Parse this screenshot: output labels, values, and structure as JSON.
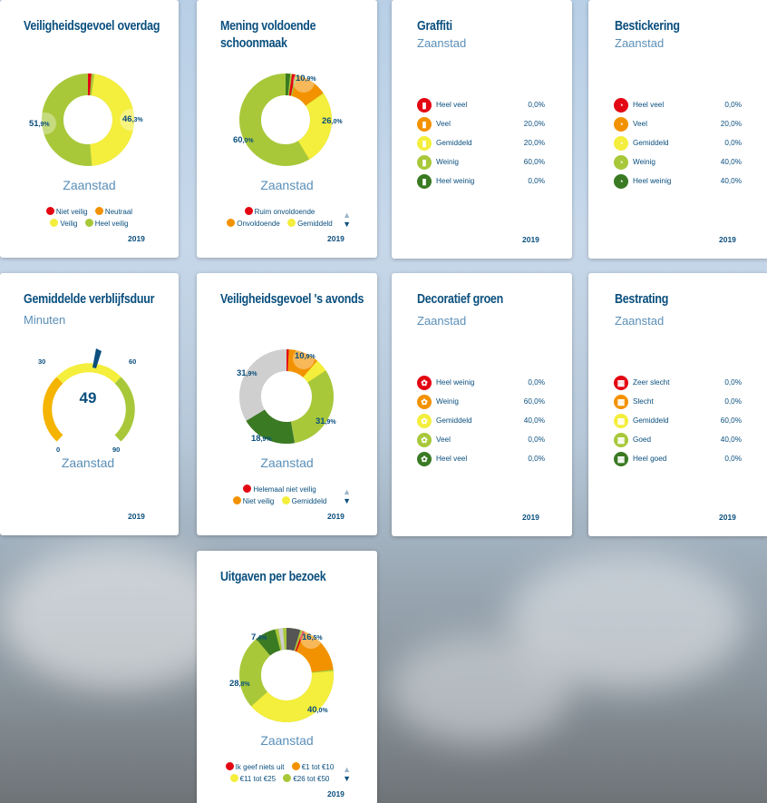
{
  "cards": {
    "c1": {
      "title": "Veiligheidsgevoel overdag",
      "region": "Zaanstad",
      "year": "2019",
      "labels": {
        "a": "51",
        "b": ",9%",
        "c": "46",
        "d": ",3%"
      },
      "legend": [
        "Niet veilig",
        "Neutraal",
        "Veilig",
        "Heel veilig"
      ]
    },
    "c2": {
      "title": "Mening voldoende schoonmaak",
      "region": "Zaanstad",
      "year": "2019",
      "labels": {
        "a": "10",
        "b": ",9%",
        "c": "26",
        "d": ",0%",
        "e": "60",
        "f": ",0%"
      },
      "legend": [
        "Ruim onvoldoende",
        "Onvoldoende",
        "Gemiddeld"
      ]
    },
    "c3": {
      "title": "Graffiti",
      "subtitle": "Zaanstad",
      "year": "2019",
      "rows": [
        {
          "label": "Heel veel",
          "value": "0,0%"
        },
        {
          "label": "Veel",
          "value": "20,0%"
        },
        {
          "label": "Gemiddeld",
          "value": "20,0%"
        },
        {
          "label": "Weinig",
          "value": "60,0%"
        },
        {
          "label": "Heel weinig",
          "value": "0,0%"
        }
      ]
    },
    "c4": {
      "title": "Bestickering",
      "subtitle": "Zaanstad",
      "year": "2019",
      "rows": [
        {
          "label": "Heel veel",
          "value": "0,0%"
        },
        {
          "label": "Veel",
          "value": "20,0%"
        },
        {
          "label": "Gemiddeld",
          "value": "0,0%"
        },
        {
          "label": "Weinig",
          "value": "40,0%"
        },
        {
          "label": "Heel weinig",
          "value": "40,0%"
        }
      ]
    },
    "c5": {
      "title": "Gemiddelde verblijfsduur",
      "subtitle": "Minuten",
      "region": "Zaanstad",
      "year": "2019",
      "gauge": {
        "value": "49",
        "t30": "30",
        "t60": "60",
        "t0": "0",
        "t90": "90"
      }
    },
    "c6": {
      "title": "Veiligheidsgevoel 's avonds",
      "region": "Zaanstad",
      "year": "2019",
      "labels": {
        "a": "10",
        "b": ",9%",
        "c": "31",
        "d": ",9%",
        "e": "18",
        "f": ",9%",
        "g": "31",
        "h": ",9%"
      },
      "legend": [
        "Helemaal niet veilig",
        "Niet veilig",
        "Gemiddeld"
      ]
    },
    "c7": {
      "title": "Decoratief groen",
      "subtitle": "Zaanstad",
      "year": "2019",
      "rows": [
        {
          "label": "Heel weinig",
          "value": "0,0%"
        },
        {
          "label": "Weinig",
          "value": "60,0%"
        },
        {
          "label": "Gemiddeld",
          "value": "40,0%"
        },
        {
          "label": "Veel",
          "value": "0,0%"
        },
        {
          "label": "Heel veel",
          "value": "0,0%"
        }
      ]
    },
    "c8": {
      "title": "Bestrating",
      "subtitle": "Zaanstad",
      "year": "2019",
      "rows": [
        {
          "label": "Zeer slecht",
          "value": "0,0%"
        },
        {
          "label": "Slecht",
          "value": "0,0%"
        },
        {
          "label": "Gemiddeld",
          "value": "60,0%"
        },
        {
          "label": "Goed",
          "value": "40,0%"
        },
        {
          "label": "Heel goed",
          "value": "0,0%"
        }
      ]
    },
    "c9": {
      "title": "Uitgaven per bezoek",
      "region": "Zaanstad",
      "year": "2019",
      "labels": {
        "a": "16",
        "b": ",5%",
        "c": "40",
        "d": ",0%",
        "e": "28",
        "f": ",8%",
        "g": "7",
        "h": ",4%"
      },
      "legend": [
        "Ik geef niets uit",
        "€1 tot €10",
        "€11 tot €25",
        "€26 tot €50"
      ]
    }
  },
  "arrows": {
    "up": "▲",
    "down": "▼"
  },
  "colors": {
    "red": "#e30613",
    "orange": "#f39200",
    "yellow": "#f4ee3c",
    "lightgreen": "#a8c83a",
    "darkgreen": "#3a7a23",
    "grey": "#cfcfcf",
    "dark": "#555555",
    "navy": "#0a4f7e"
  }
}
